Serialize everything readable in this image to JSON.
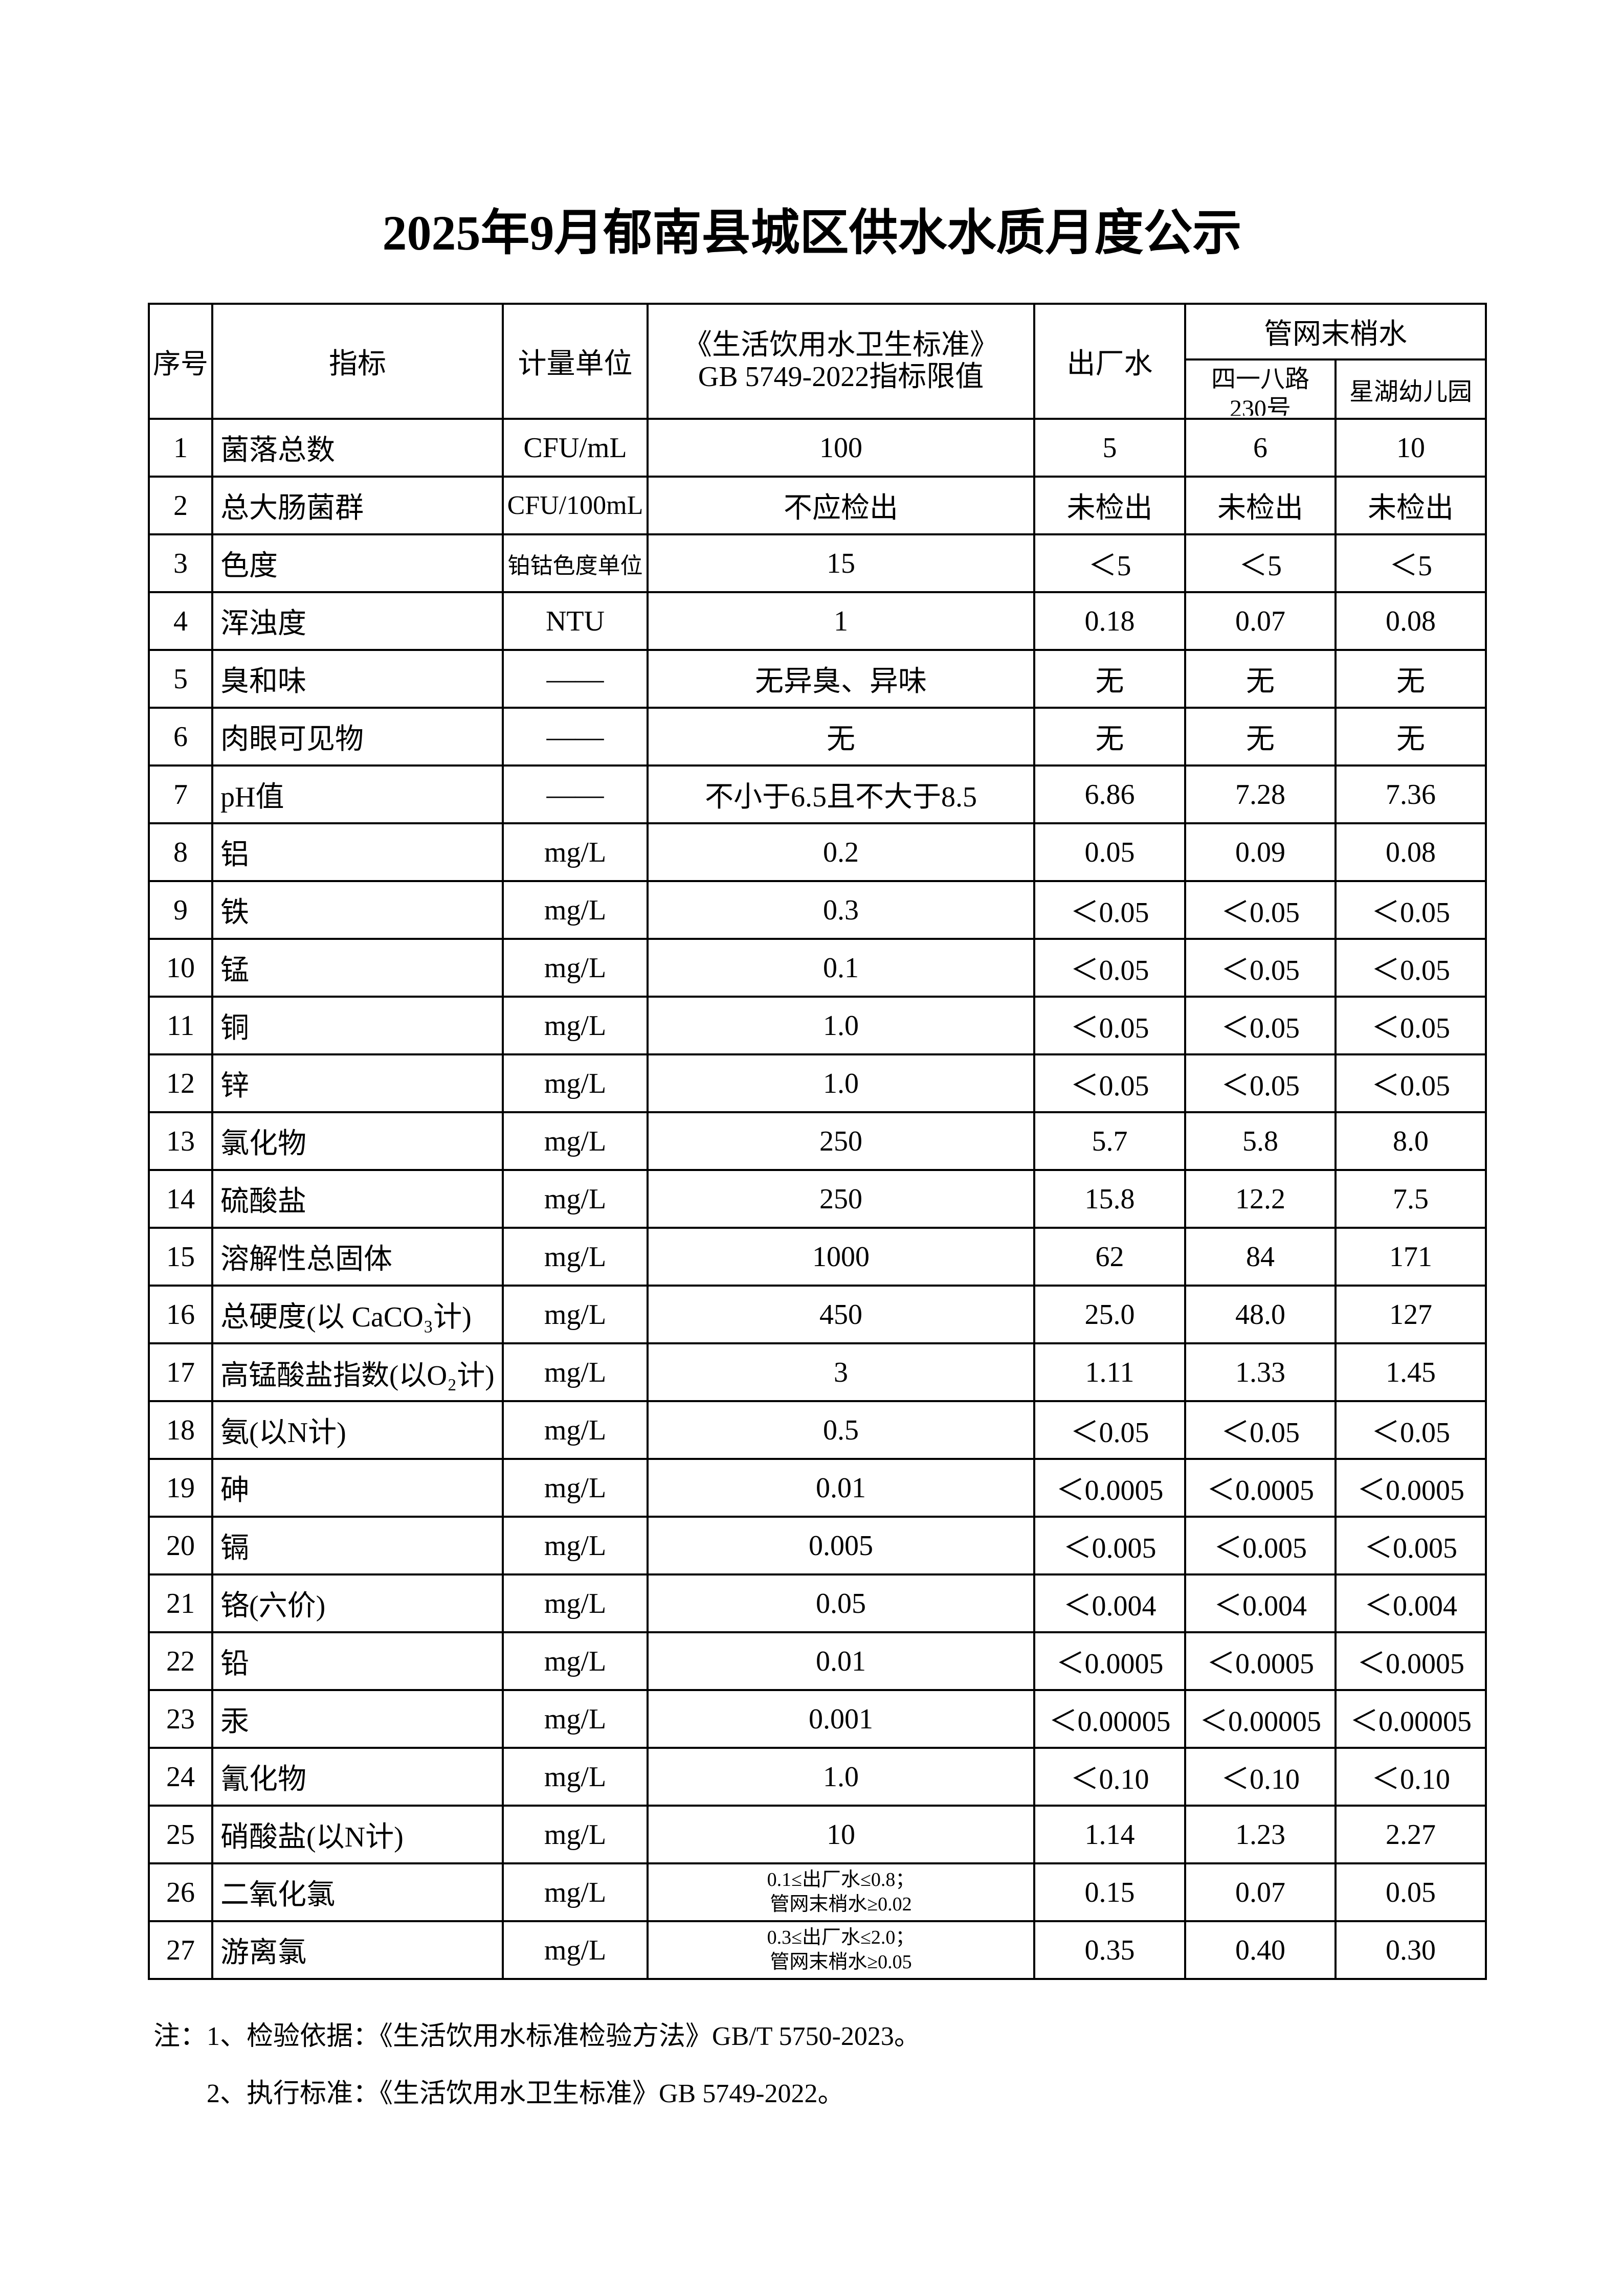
{
  "header": {
    "title": "2025年9月郁南县城区供水水质月度公示"
  },
  "table": {
    "columns": [
      "序号",
      "指标",
      "计量单位",
      [
        "《生活饮用水卫生标准》",
        "GB 5749-2022指标限值"
      ],
      "出厂水"
    ],
    "group_header": "管网末梢水",
    "sites": [
      [
        "四一八路",
        "230号"
      ],
      "星湖幼儿园"
    ],
    "rows": [
      [
        "1",
        "菌落总数",
        "CFU/mL",
        "100",
        "5",
        "6",
        "10"
      ],
      [
        "2",
        "总大肠菌群",
        "CFU/100mL",
        "不应检出",
        "未检出",
        "未检出",
        "未检出"
      ],
      [
        "3",
        "色度",
        "铂钴色度单位",
        "15",
        "＜5",
        "＜5",
        "＜5"
      ],
      [
        "4",
        "浑浊度",
        "NTU",
        "1",
        "0.18",
        "0.07",
        "0.08"
      ],
      [
        "5",
        "臭和味",
        "——",
        "无异臭、异味",
        "无",
        "无",
        "无"
      ],
      [
        "6",
        "肉眼可见物",
        "——",
        "无",
        "无",
        "无",
        "无"
      ],
      [
        "7",
        "pH值",
        "——",
        "不小于6.5且不大于8.5",
        "6.86",
        "7.28",
        "7.36"
      ],
      [
        "8",
        "铝",
        "mg/L",
        "0.2",
        "0.05",
        "0.09",
        "0.08"
      ],
      [
        "9",
        "铁",
        "mg/L",
        "0.3",
        "＜0.05",
        "＜0.05",
        "＜0.05"
      ],
      [
        "10",
        "锰",
        "mg/L",
        "0.1",
        "＜0.05",
        "＜0.05",
        "＜0.05"
      ],
      [
        "11",
        "铜",
        "mg/L",
        "1.0",
        "＜0.05",
        "＜0.05",
        "＜0.05"
      ],
      [
        "12",
        "锌",
        "mg/L",
        "1.0",
        "＜0.05",
        "＜0.05",
        "＜0.05"
      ],
      [
        "13",
        "氯化物",
        "mg/L",
        "250",
        "5.7",
        "5.8",
        "8.0"
      ],
      [
        "14",
        "硫酸盐",
        "mg/L",
        "250",
        "15.8",
        "12.2",
        "7.5"
      ],
      [
        "15",
        "溶解性总固体",
        "mg/L",
        "1000",
        "62",
        "84",
        "171"
      ],
      [
        "16",
        "总硬度(以 CaCO₃计)",
        "mg/L",
        "450",
        "25.0",
        "48.0",
        "127"
      ],
      [
        "17",
        "高锰酸盐指数(以O₂计)",
        "mg/L",
        "3",
        "1.11",
        "1.33",
        "1.45"
      ],
      [
        "18",
        "氨(以N计)",
        "mg/L",
        "0.5",
        "＜0.05",
        "＜0.05",
        "＜0.05"
      ],
      [
        "19",
        "砷",
        "mg/L",
        "0.01",
        "＜0.0005",
        "＜0.0005",
        "＜0.0005"
      ],
      [
        "20",
        "镉",
        "mg/L",
        "0.005",
        "＜0.005",
        "＜0.005",
        "＜0.005"
      ],
      [
        "21",
        "铬(六价)",
        "mg/L",
        "0.05",
        "＜0.004",
        "＜0.004",
        "＜0.004"
      ],
      [
        "22",
        "铅",
        "mg/L",
        "0.01",
        "＜0.0005",
        "＜0.0005",
        "＜0.0005"
      ],
      [
        "23",
        "汞",
        "mg/L",
        "0.001",
        "＜0.00005",
        "＜0.00005",
        "＜0.00005"
      ],
      [
        "24",
        "氰化物",
        "mg/L",
        "1.0",
        "＜0.10",
        "＜0.10",
        "＜0.10"
      ],
      [
        "25",
        "硝酸盐(以N计)",
        "mg/L",
        "10",
        "1.14",
        "1.23",
        "2.27"
      ],
      [
        "26",
        "二氧化氯",
        "mg/L",
        [
          "0.1≤出厂水≤0.8；",
          "管网末梢水≥0.02"
        ],
        "0.15",
        "0.07",
        "0.05"
      ],
      [
        "27",
        "游离氯",
        "mg/L",
        [
          "0.3≤出厂水≤2.0；",
          "管网末梢水≥0.05"
        ],
        "0.35",
        "0.40",
        "0.30"
      ]
    ]
  },
  "notes": {
    "prefix": "注：",
    "items": [
      "1、检验依据：《生活饮用水标准检验方法》GB/T 5750-2023。",
      "2、执行标准：《生活饮用水卫生标准》GB 5749-2022。"
    ]
  }
}
